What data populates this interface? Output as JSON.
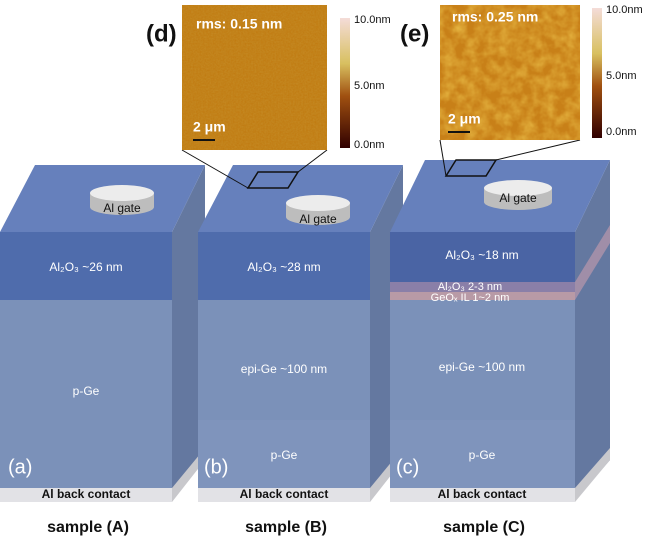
{
  "insets": [
    {
      "label": "(d)",
      "rms": "rms: 0.15 nm",
      "scale_bar": "2 μm",
      "colorbar": [
        "10.0nm",
        "5.0nm",
        "0.0nm"
      ]
    },
    {
      "label": "(e)",
      "rms": "rms: 0.25 nm",
      "scale_bar": "2 μm",
      "colorbar": [
        "10.0nm",
        "5.0nm",
        "0.0nm"
      ]
    }
  ],
  "samples": [
    {
      "panel": "(a)",
      "gate": "Al gate",
      "layers": [
        "Al₂O₃ ~26 nm",
        "p-Ge"
      ],
      "back_contact": "Al back contact",
      "caption": "sample (A)"
    },
    {
      "panel": "(b)",
      "gate": "Al gate",
      "layers": [
        "Al₂O₃ ~28 nm",
        "epi-Ge ~100 nm",
        "p-Ge"
      ],
      "back_contact": "Al back contact",
      "caption": "sample (B)"
    },
    {
      "panel": "(c)",
      "gate": "Al gate",
      "layers": [
        "Al₂O₃ ~18 nm",
        "Al₂O₃ 2-3 nm",
        "GeOₓ IL 1~2 nm",
        "epi-Ge ~100 nm",
        "p-Ge"
      ],
      "back_contact": "Al back contact",
      "caption": "sample (C)"
    }
  ]
}
